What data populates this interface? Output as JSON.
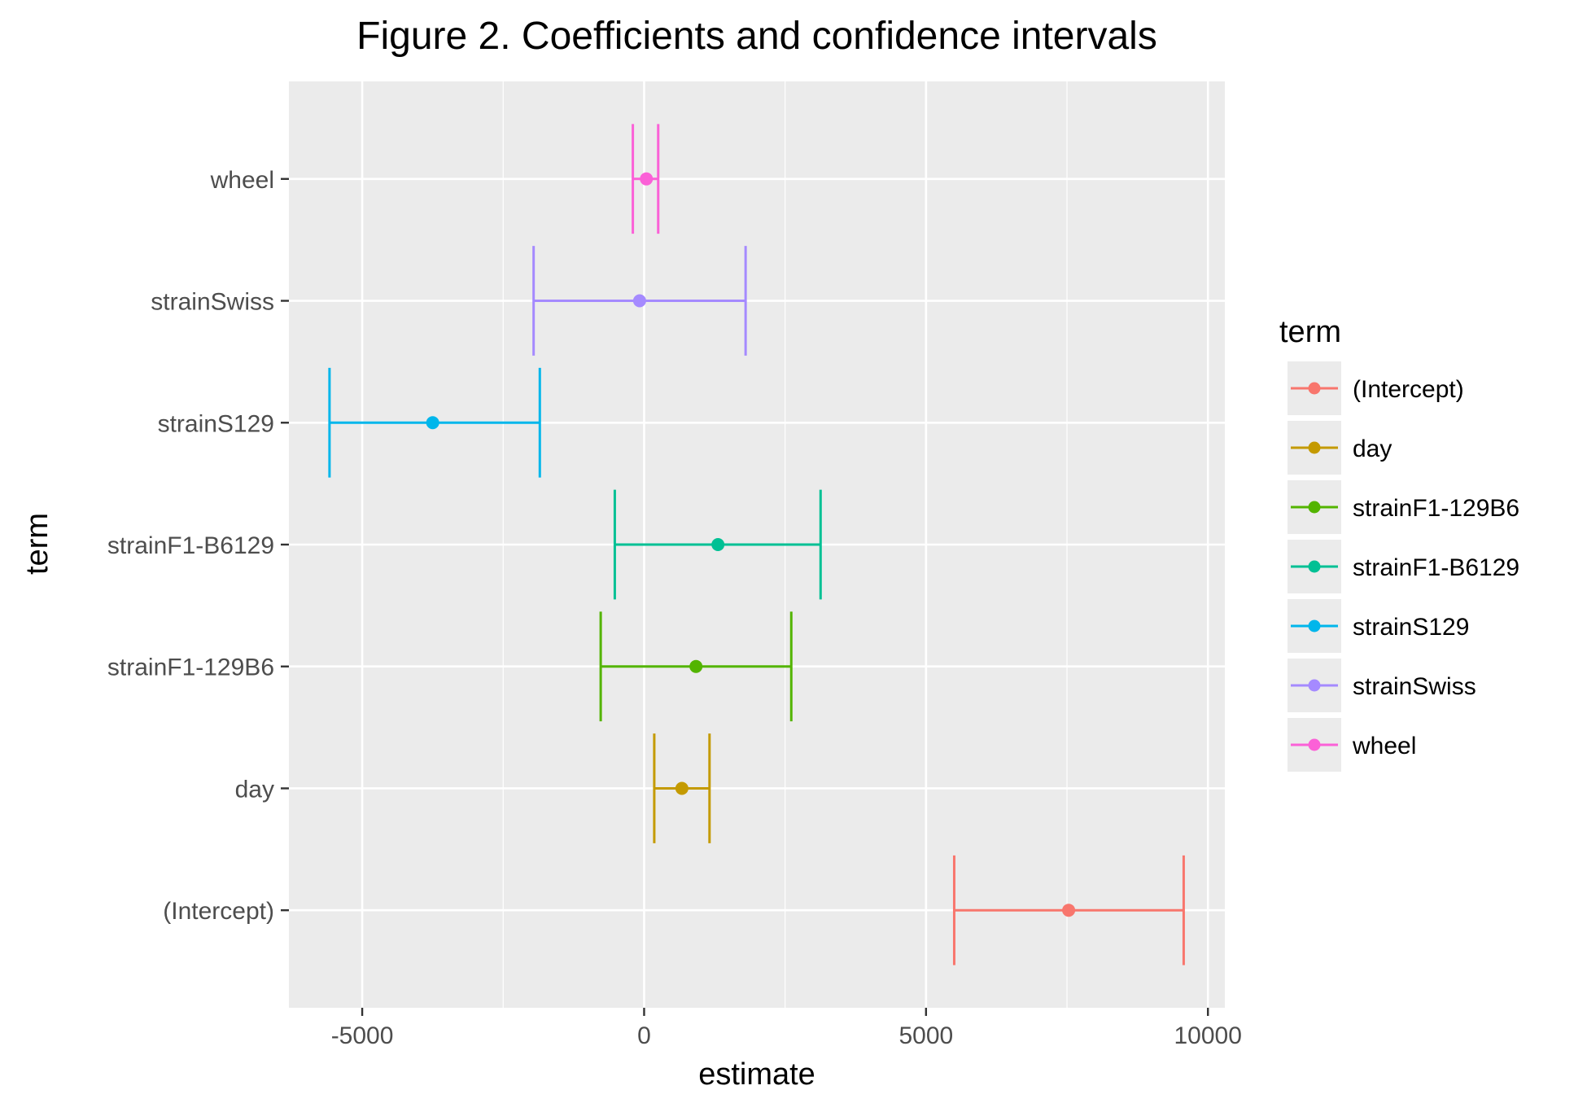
{
  "chart_data": {
    "type": "errorbar",
    "title": "Figure 2. Coefficients and confidence intervals",
    "xlabel": "estimate",
    "ylabel": "term",
    "xlim": [
      -6300,
      10300
    ],
    "x_ticks": [
      -5000,
      0,
      5000,
      10000
    ],
    "x_tick_labels": [
      "-5000",
      "0",
      "5000",
      "10000"
    ],
    "categories": [
      "(Intercept)",
      "day",
      "strainF1-129B6",
      "strainF1-B6129",
      "strainS129",
      "strainSwiss",
      "wheel"
    ],
    "series": [
      {
        "name": "(Intercept)",
        "estimate": 7530,
        "low": 5500,
        "high": 9570,
        "color": "#F8766D"
      },
      {
        "name": "day",
        "estimate": 670,
        "low": 180,
        "high": 1160,
        "color": "#C49A00"
      },
      {
        "name": "strainF1-129B6",
        "estimate": 920,
        "low": -770,
        "high": 2610,
        "color": "#53B400"
      },
      {
        "name": "strainF1-B6129",
        "estimate": 1310,
        "low": -520,
        "high": 3130,
        "color": "#00C094"
      },
      {
        "name": "strainS129",
        "estimate": -3750,
        "low": -5580,
        "high": -1850,
        "color": "#00B6EB"
      },
      {
        "name": "strainSwiss",
        "estimate": -80,
        "low": -1960,
        "high": 1800,
        "color": "#A58AFF"
      },
      {
        "name": "wheel",
        "estimate": 40,
        "low": -200,
        "high": 250,
        "color": "#FB61D7"
      }
    ],
    "grid": true,
    "legend": {
      "title": "term",
      "position": "right"
    },
    "panel_background": "#EBEBEB",
    "grid_color": "#FFFFFF"
  }
}
